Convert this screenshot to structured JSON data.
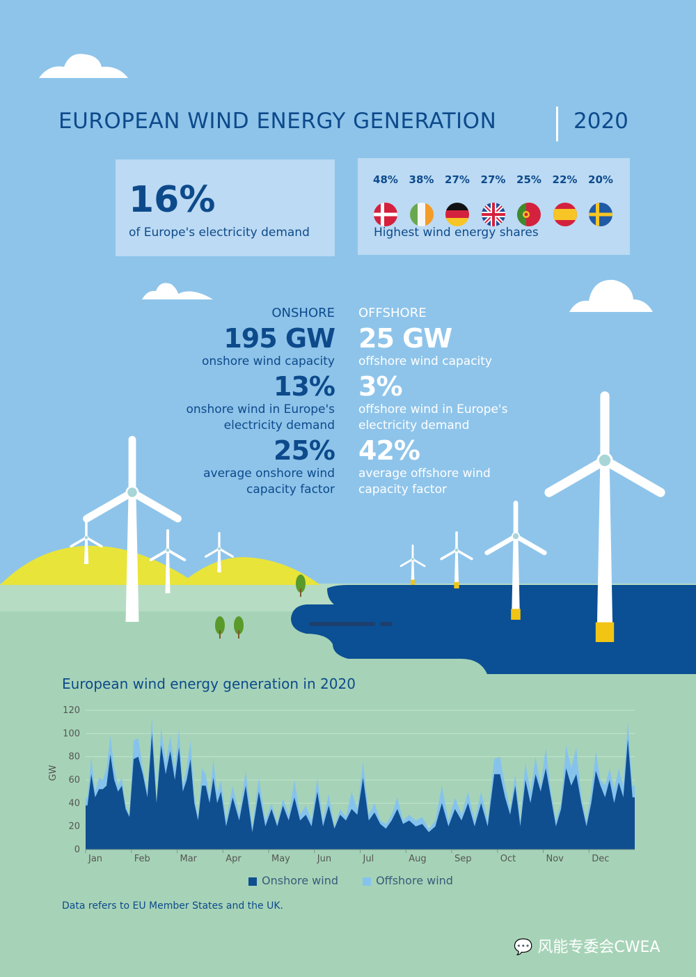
{
  "header": {
    "title": "EUROPEAN WIND ENERGY GENERATION",
    "year": "2020"
  },
  "demand_box": {
    "value": "16%",
    "label": "of Europe's electricity demand"
  },
  "shares_box": {
    "label": "Highest wind energy shares",
    "countries": [
      {
        "flag": "denmark-flag",
        "share": "48%"
      },
      {
        "flag": "ireland-flag",
        "share": "38%"
      },
      {
        "flag": "germany-flag",
        "share": "27%"
      },
      {
        "flag": "uk-flag",
        "share": "27%"
      },
      {
        "flag": "portugal-flag",
        "share": "25%"
      },
      {
        "flag": "spain-flag",
        "share": "22%"
      },
      {
        "flag": "sweden-flag",
        "share": "20%"
      }
    ]
  },
  "onshore": {
    "heading": "ONSHORE",
    "capacity": "195 GW",
    "capacity_label": "onshore wind capacity",
    "share": "13%",
    "share_label_1": "onshore wind in Europe's",
    "share_label_2": "electricity demand",
    "factor": "25%",
    "factor_label_1": "average onshore wind",
    "factor_label_2": "capacity factor"
  },
  "offshore": {
    "heading": "OFFSHORE",
    "capacity": "25 GW",
    "capacity_label": "offshore wind capacity",
    "share": "3%",
    "share_label_1": "offshore wind in Europe's",
    "share_label_2": "electricity demand",
    "factor": "42%",
    "factor_label_1": "average offshore wind",
    "factor_label_2": "capacity factor"
  },
  "colors": {
    "sky": "#8ec4ea",
    "onshore": "#0f4e8f",
    "offshore": "#86c3ec",
    "sea": "#0b4f94",
    "hills": "#e8e43a",
    "ground": "#a6d3b7"
  },
  "chart_data": {
    "type": "area",
    "stacked": true,
    "title": "European wind energy generation in 2020",
    "ylabel": "GW",
    "ylim": [
      0,
      120
    ],
    "yticks": [
      "0",
      "20",
      "40",
      "60",
      "80",
      "100",
      "120"
    ],
    "grid": true,
    "legend_position": "bottom",
    "months": [
      {
        "month": "Jan",
        "onshore": [
          38,
          65,
          45,
          52,
          52,
          55,
          82,
          60,
          50,
          55,
          35,
          28
        ],
        "offshore": [
          7,
          15,
          5,
          10,
          8,
          15,
          16,
          10,
          5,
          7,
          3,
          2
        ]
      },
      {
        "month": "Feb",
        "onshore": [
          78,
          80,
          65,
          45,
          100,
          40,
          90,
          65,
          85,
          60
        ],
        "offshore": [
          16,
          16,
          5,
          5,
          15,
          2,
          15,
          10,
          13,
          10
        ]
      },
      {
        "month": "Mar",
        "onshore": [
          88,
          50,
          60,
          78,
          40,
          25,
          55,
          55,
          40,
          62,
          40,
          50
        ],
        "offshore": [
          16,
          5,
          10,
          16,
          8,
          3,
          15,
          10,
          5,
          16,
          8,
          10
        ]
      },
      {
        "month": "Apr",
        "onshore": [
          20,
          45,
          25,
          55,
          15,
          50,
          20
        ],
        "offshore": [
          5,
          10,
          5,
          13,
          5,
          12,
          5
        ]
      },
      {
        "month": "May",
        "onshore": [
          35,
          20,
          38,
          25,
          45,
          25,
          30,
          20
        ],
        "offshore": [
          5,
          2,
          6,
          5,
          15,
          5,
          8,
          5
        ]
      },
      {
        "month": "Jun",
        "onshore": [
          50,
          20,
          38,
          18,
          30,
          25,
          35,
          30
        ],
        "offshore": [
          12,
          5,
          10,
          2,
          5,
          3,
          15,
          5
        ]
      },
      {
        "month": "Jul",
        "onshore": [
          62,
          25,
          32,
          22,
          18,
          25,
          35,
          22
        ],
        "offshore": [
          14,
          5,
          8,
          3,
          4,
          5,
          10,
          3
        ]
      },
      {
        "month": "Aug",
        "onshore": [
          25,
          20,
          22,
          15,
          20,
          40,
          20
        ],
        "offshore": [
          5,
          5,
          6,
          3,
          5,
          15,
          5
        ]
      },
      {
        "month": "Sep",
        "onshore": [
          35,
          25,
          40,
          20,
          40,
          20,
          65
        ],
        "offshore": [
          10,
          5,
          10,
          5,
          10,
          5,
          13
        ]
      },
      {
        "month": "Oct",
        "onshore": [
          65,
          45,
          30,
          55,
          20,
          60,
          40,
          65,
          50
        ],
        "offshore": [
          15,
          10,
          5,
          10,
          5,
          15,
          10,
          15,
          5
        ]
      },
      {
        "month": "Nov",
        "onshore": [
          70,
          45,
          20,
          35,
          70,
          55,
          65,
          40,
          20
        ],
        "offshore": [
          18,
          5,
          5,
          5,
          20,
          15,
          23,
          5,
          5
        ]
      },
      {
        "month": "Dec",
        "onshore": [
          40,
          68,
          55,
          45,
          60,
          40,
          58,
          45,
          95,
          45
        ],
        "offshore": [
          10,
          17,
          5,
          10,
          10,
          12,
          12,
          10,
          15,
          10
        ]
      }
    ],
    "series": [
      {
        "name": "Onshore wind"
      },
      {
        "name": "Offshore wind"
      }
    ]
  },
  "footnote": "Data refers to EU Member States and the UK.",
  "watermark": "风能专委会CWEA"
}
